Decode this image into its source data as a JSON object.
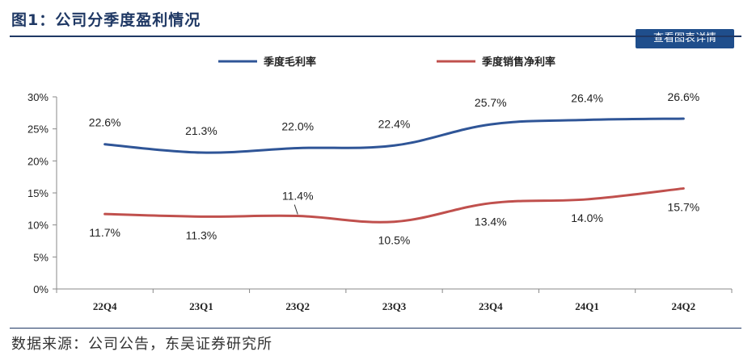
{
  "title": "图1：公司分季度盈利情况",
  "detail_button": "查看图表详情",
  "source": "数据来源：公司公告，东吴证券研究所",
  "chart_data": {
    "type": "line",
    "categories": [
      "22Q4",
      "23Q1",
      "23Q2",
      "23Q3",
      "23Q4",
      "24Q1",
      "24Q2"
    ],
    "series": [
      {
        "name": "季度毛利率",
        "color": "#2f5597",
        "values": [
          22.6,
          21.3,
          22.0,
          22.4,
          25.7,
          26.4,
          26.6
        ],
        "labels": [
          "22.6%",
          "21.3%",
          "22.0%",
          "22.4%",
          "25.7%",
          "26.4%",
          "26.6%"
        ]
      },
      {
        "name": "季度销售净利率",
        "color": "#c0504d",
        "values": [
          11.7,
          11.3,
          11.4,
          10.5,
          13.4,
          14.0,
          15.7
        ],
        "labels": [
          "11.7%",
          "11.3%",
          "11.4%",
          "10.5%",
          "13.4%",
          "14.0%",
          "15.7%"
        ]
      }
    ],
    "ylim": [
      0,
      30
    ],
    "yticks": [
      "0%",
      "5%",
      "10%",
      "15%",
      "20%",
      "25%",
      "30%"
    ],
    "legend_position": "top",
    "grid": false
  }
}
